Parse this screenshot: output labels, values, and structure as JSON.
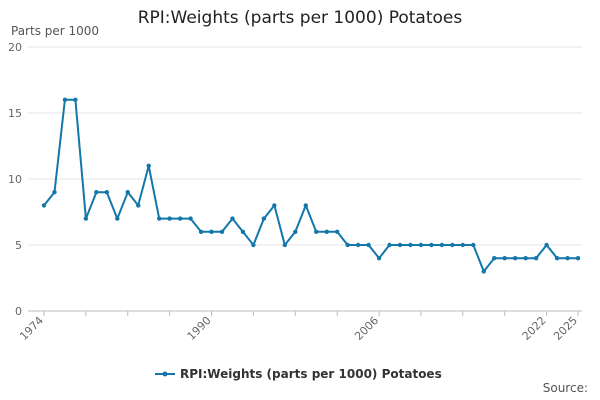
{
  "header": {
    "title": "RPI:Weights (parts per 1000) Potatoes",
    "y_unit": "Parts per 1000"
  },
  "footer": {
    "source_label": "Source:"
  },
  "colors": {
    "series": "#1477aa",
    "grid": "#e6e6e6",
    "axis": "#bbbbbb"
  },
  "chart_data": {
    "type": "line",
    "title": "RPI:Weights (parts per 1000) Potatoes",
    "ylabel": "Parts per 1000",
    "xlabel": "",
    "ylim": [
      0,
      20
    ],
    "xlim": [
      1974,
      2025
    ],
    "y_ticks": [
      0,
      5,
      10,
      15,
      20
    ],
    "x_tick_labels": [
      "1974",
      "1990",
      "2006",
      "2022",
      "2025"
    ],
    "grid": "horizontal",
    "legend_position": "bottom",
    "series": [
      {
        "name": "RPI:Weights (parts per 1000) Potatoes",
        "x": [
          1974,
          1975,
          1976,
          1977,
          1978,
          1979,
          1980,
          1981,
          1982,
          1983,
          1984,
          1985,
          1986,
          1987,
          1988,
          1989,
          1990,
          1991,
          1992,
          1993,
          1994,
          1995,
          1996,
          1997,
          1998,
          1999,
          2000,
          2001,
          2002,
          2003,
          2004,
          2005,
          2006,
          2007,
          2008,
          2009,
          2010,
          2011,
          2012,
          2013,
          2014,
          2015,
          2016,
          2017,
          2018,
          2019,
          2020,
          2021,
          2022,
          2023,
          2024,
          2025
        ],
        "values": [
          8,
          9,
          16,
          16,
          7,
          9,
          9,
          7,
          9,
          8,
          11,
          7,
          7,
          7,
          7,
          6,
          6,
          6,
          7,
          6,
          5,
          7,
          8,
          5,
          6,
          8,
          6,
          6,
          6,
          5,
          5,
          5,
          4,
          5,
          5,
          5,
          5,
          5,
          5,
          5,
          5,
          5,
          3,
          4,
          4,
          4,
          4,
          4,
          5,
          4,
          4,
          4
        ]
      }
    ]
  }
}
